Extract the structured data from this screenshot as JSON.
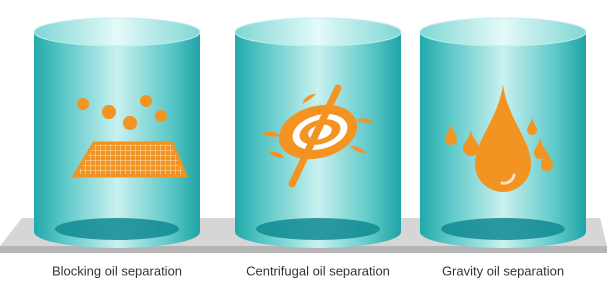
{
  "items": [
    {
      "label": "Blocking oil separation"
    },
    {
      "label": "Centrifugal oil separation"
    },
    {
      "label": "Gravity oil separation"
    }
  ]
}
